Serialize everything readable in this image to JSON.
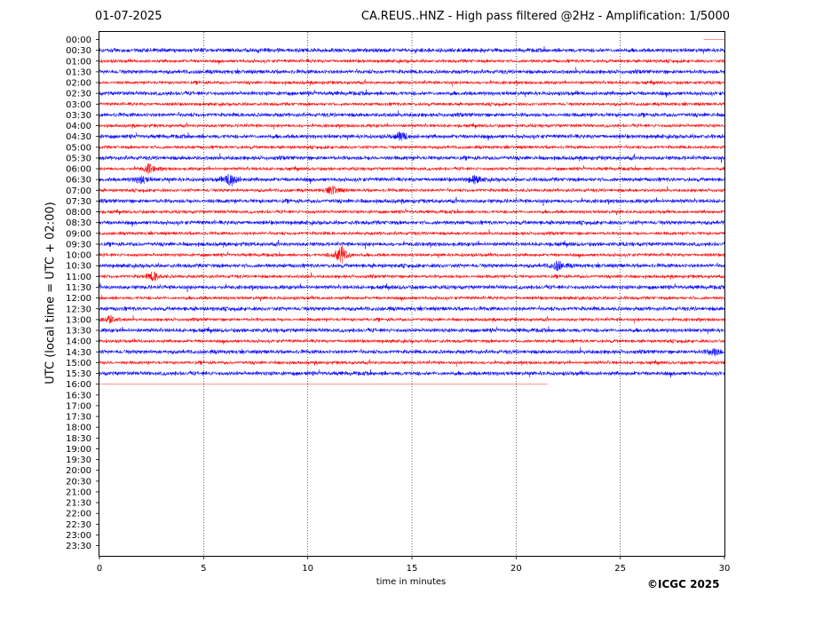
{
  "header": {
    "date": "01-07-2025",
    "title": "CA.REUS..HNZ - High pass filtered @2Hz - Amplification: 1/5000"
  },
  "footer": {
    "copyright": "©ICGC 2025"
  },
  "colors": {
    "trace_a": "#ff0000",
    "trace_b": "#0000ff",
    "grid": "#000000"
  },
  "chart_data": {
    "type": "line",
    "title": "CA.REUS..HNZ - High pass filtered @2Hz - Amplification: 1/5000",
    "xlabel": "time in minutes",
    "ylabel": "UTC (local time = UTC + 02:00)",
    "xlim": [
      0,
      30
    ],
    "x_ticks": [
      0,
      5,
      10,
      15,
      20,
      25,
      30
    ],
    "grid": "vertical dotted lines at 5-minute intervals",
    "row_labels": [
      "00:00",
      "00:30",
      "01:00",
      "01:30",
      "02:00",
      "02:30",
      "03:00",
      "03:30",
      "04:00",
      "04:30",
      "05:00",
      "05:30",
      "06:00",
      "06:30",
      "07:00",
      "07:30",
      "08:00",
      "08:30",
      "09:00",
      "09:30",
      "10:00",
      "10:30",
      "11:00",
      "11:30",
      "12:00",
      "12:30",
      "13:00",
      "13:30",
      "14:00",
      "14:30",
      "15:00",
      "15:30",
      "16:00",
      "16:30",
      "17:00",
      "17:30",
      "18:00",
      "18:30",
      "19:00",
      "19:30",
      "20:00",
      "20:30",
      "21:00",
      "21:30",
      "22:00",
      "22:30",
      "23:00",
      "23:30"
    ],
    "trace_colors_alternate": [
      "red",
      "blue"
    ],
    "rows_with_data": 33,
    "last_row_end_minute": 21.5,
    "first_row_start_minute": 29.0,
    "events": [
      {
        "row": "06:30",
        "minute": 6.3,
        "relative_amplitude": 0.9
      },
      {
        "row": "06:00",
        "minute": 2.4,
        "relative_amplitude": 0.6
      },
      {
        "row": "06:30",
        "minute": 2.0,
        "relative_amplitude": 0.5
      },
      {
        "row": "06:30",
        "minute": 18.0,
        "relative_amplitude": 0.5
      },
      {
        "row": "07:00",
        "minute": 11.2,
        "relative_amplitude": 0.6
      },
      {
        "row": "10:00",
        "minute": 11.6,
        "relative_amplitude": 1.4
      },
      {
        "row": "11:00",
        "minute": 2.6,
        "relative_amplitude": 0.6
      },
      {
        "row": "10:30",
        "minute": 22.0,
        "relative_amplitude": 0.6
      },
      {
        "row": "04:30",
        "minute": 14.5,
        "relative_amplitude": 0.5
      },
      {
        "row": "13:00",
        "minute": 0.5,
        "relative_amplitude": 0.5
      },
      {
        "row": "14:30",
        "minute": 29.5,
        "relative_amplitude": 0.5
      }
    ]
  }
}
